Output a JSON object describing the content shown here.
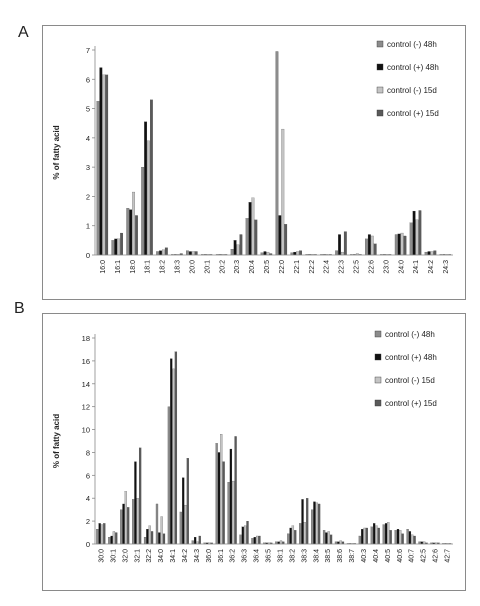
{
  "chart_data": [
    {
      "panel": "A",
      "type": "bar",
      "ylabel": "% of fatty acid",
      "ylim": [
        0,
        7
      ],
      "yticks": [
        0,
        1,
        2,
        3,
        4,
        5,
        6,
        7
      ],
      "legend_position": "top-right",
      "categories": [
        "16:0",
        "16:1",
        "18:0",
        "18:1",
        "18:2",
        "18:3",
        "20:0",
        "20:1",
        "20:2",
        "20:3",
        "20:4",
        "20:5",
        "22:0",
        "22:1",
        "22:2",
        "22:4",
        "22:3",
        "22:5",
        "22:6",
        "23:0",
        "24:0",
        "24:1",
        "24:2",
        "24:3"
      ],
      "series": [
        {
          "name": "control (-) 48h",
          "color": "#8c8c8c",
          "values": [
            5.25,
            0.5,
            1.6,
            3.0,
            0.12,
            0.02,
            0.15,
            0.02,
            0.02,
            0.2,
            1.25,
            0.08,
            6.95,
            0.08,
            0.02,
            0.02,
            0.15,
            0.02,
            0.55,
            0.02,
            0.7,
            1.1,
            0.1,
            0.02
          ]
        },
        {
          "name": "control (+) 48h",
          "color": "#111111",
          "values": [
            6.4,
            0.55,
            1.55,
            4.55,
            0.15,
            0.02,
            0.12,
            0.02,
            0.02,
            0.5,
            1.8,
            0.12,
            1.35,
            0.1,
            0.02,
            0.02,
            0.7,
            0.02,
            0.7,
            0.02,
            0.72,
            1.5,
            0.12,
            0.02
          ]
        },
        {
          "name": "control (-) 15d",
          "color": "#c4c4c4",
          "values": [
            6.15,
            0.55,
            2.15,
            3.9,
            0.18,
            0.02,
            0.12,
            0.02,
            0.02,
            0.35,
            1.95,
            0.1,
            4.3,
            0.12,
            0.02,
            0.02,
            0.1,
            0.05,
            0.65,
            0.02,
            0.75,
            1.2,
            0.12,
            0.02
          ]
        },
        {
          "name": "control (+) 15d",
          "color": "#5a5a5a",
          "values": [
            6.15,
            0.75,
            1.35,
            5.3,
            0.25,
            0.05,
            0.12,
            0.02,
            0.02,
            0.7,
            1.2,
            0.05,
            1.05,
            0.15,
            0.02,
            0.02,
            0.8,
            0.02,
            0.38,
            0.02,
            0.65,
            1.52,
            0.15,
            0.02
          ]
        }
      ]
    },
    {
      "panel": "B",
      "type": "bar",
      "ylabel": "% of fatty acid",
      "ylim": [
        0,
        18
      ],
      "yticks": [
        0,
        2,
        4,
        6,
        8,
        10,
        12,
        14,
        16,
        18
      ],
      "legend_position": "top-right",
      "categories": [
        "30:0",
        "30:1",
        "32:0",
        "32:1",
        "32:2",
        "34:0",
        "34:1",
        "34:2",
        "34:3",
        "36:0",
        "36:1",
        "36:2",
        "36:3",
        "36:4",
        "36:5",
        "38:1",
        "38:2",
        "38:3",
        "38:4",
        "38:5",
        "38:6",
        "38:7",
        "40:3",
        "40:4",
        "40:5",
        "40:6",
        "40:7",
        "42:5",
        "42:6",
        "42:7"
      ],
      "series": [
        {
          "name": "control (-) 48h",
          "color": "#8c8c8c",
          "values": [
            1.3,
            0.6,
            3.0,
            3.9,
            0.6,
            3.5,
            12.0,
            2.8,
            0.3,
            0.1,
            8.8,
            5.4,
            0.8,
            0.5,
            0.1,
            0.2,
            0.9,
            1.8,
            3.0,
            1.2,
            0.2,
            0.05,
            0.7,
            1.5,
            1.7,
            1.2,
            1.3,
            0.2,
            0.1,
            0.05
          ]
        },
        {
          "name": "control (+) 48h",
          "color": "#111111",
          "values": [
            1.8,
            0.7,
            3.5,
            7.2,
            1.3,
            1.0,
            16.2,
            5.8,
            0.6,
            0.1,
            8.0,
            8.3,
            1.5,
            0.6,
            0.1,
            0.2,
            1.4,
            3.9,
            3.7,
            1.0,
            0.2,
            0.05,
            1.3,
            1.8,
            1.8,
            1.3,
            1.1,
            0.2,
            0.1,
            0.05
          ]
        },
        {
          "name": "control (-) 15d",
          "color": "#c4c4c4",
          "values": [
            1.7,
            1.1,
            4.6,
            4.0,
            1.6,
            2.4,
            15.3,
            3.4,
            0.2,
            0.1,
            9.6,
            5.5,
            1.6,
            0.7,
            0.1,
            0.3,
            1.6,
            1.9,
            3.6,
            1.1,
            0.3,
            0.05,
            1.4,
            1.6,
            1.9,
            1.2,
            0.8,
            0.2,
            0.1,
            0.05
          ]
        },
        {
          "name": "control (+) 15d",
          "color": "#5a5a5a",
          "values": [
            1.8,
            1.0,
            3.2,
            8.4,
            1.1,
            0.9,
            16.8,
            7.5,
            0.7,
            0.1,
            7.2,
            9.4,
            2.0,
            0.7,
            0.1,
            0.2,
            1.2,
            4.0,
            3.5,
            0.8,
            0.2,
            0.05,
            1.4,
            1.4,
            1.2,
            0.9,
            0.7,
            0.1,
            0.1,
            0.05
          ]
        }
      ]
    }
  ]
}
